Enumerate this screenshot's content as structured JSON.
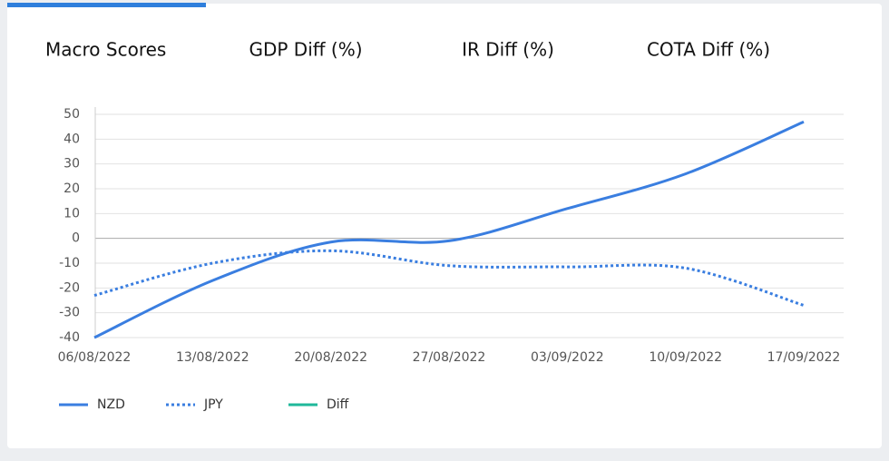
{
  "tabs": [
    "Macro Scores",
    "GDP Diff (%)",
    "IR Diff (%)",
    "COTA Diff (%)"
  ],
  "chart_data": {
    "type": "line",
    "categories": [
      "06/08/2022",
      "13/08/2022",
      "20/08/2022",
      "27/08/2022",
      "03/09/2022",
      "10/09/2022",
      "17/09/2022"
    ],
    "series": [
      {
        "name": "NZD",
        "color": "#3a7ee0",
        "style": "solid",
        "values": [
          -40,
          -17,
          -1.5,
          -1,
          12,
          26,
          47
        ]
      },
      {
        "name": "JPY",
        "color": "#3a7ee0",
        "style": "dotted",
        "values": [
          -23,
          -10,
          -5,
          -11,
          -11.5,
          -12,
          -27
        ]
      },
      {
        "name": "Diff",
        "color": "#1fb89a",
        "style": "solid",
        "values": [
          null,
          null,
          null,
          null,
          null,
          null,
          null
        ]
      }
    ],
    "ylim": [
      -40,
      50
    ],
    "yticks": [
      -40,
      -30,
      -20,
      -10,
      0,
      10,
      20,
      30,
      40,
      50
    ],
    "grid": true
  }
}
